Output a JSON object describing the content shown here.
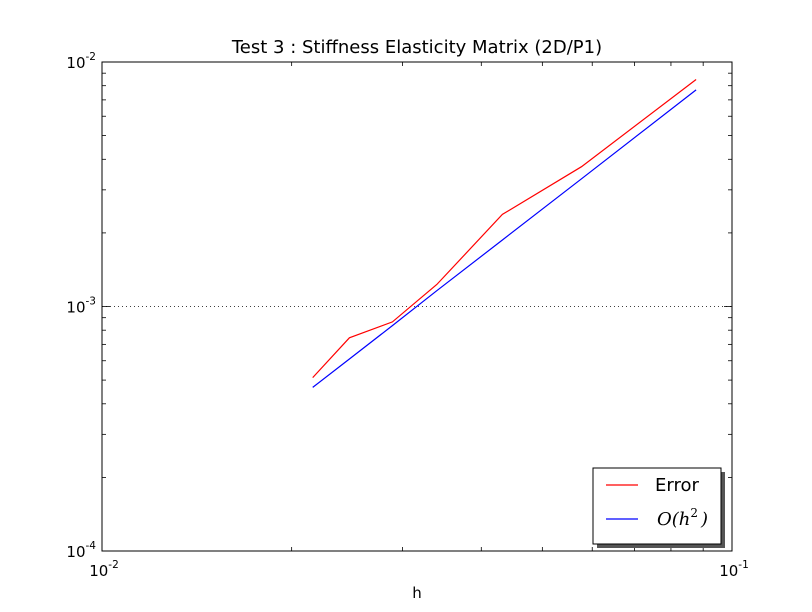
{
  "chart_data": {
    "type": "line",
    "title": "Test 3 : Stiffness Elasticity Matrix (2D/P1)",
    "xlabel": "h",
    "ylabel": "",
    "xscale": "log",
    "yscale": "log",
    "xlim": [
      0.01,
      0.1
    ],
    "ylim": [
      0.0001,
      0.01
    ],
    "xticks": [
      {
        "base": "10",
        "exp": "-2"
      },
      {
        "base": "10",
        "exp": "-1"
      }
    ],
    "yticks": [
      {
        "base": "10",
        "exp": "-4"
      },
      {
        "base": "10",
        "exp": "-3"
      },
      {
        "base": "10",
        "exp": "-2"
      }
    ],
    "grid": "dotted horizontal line at 10^-3",
    "legend_position": "lower-right",
    "series": [
      {
        "name": "Error",
        "color": "#ff0000",
        "x": [
          0.0216,
          0.0247,
          0.0289,
          0.034,
          0.0432,
          0.0577,
          0.0877
        ],
        "y": [
          0.000512,
          0.000745,
          0.000865,
          0.00123,
          0.00238,
          0.00373,
          0.00848
        ]
      },
      {
        "name": "O(h2)",
        "color": "#0000ff",
        "x": [
          0.0216,
          0.0247,
          0.0289,
          0.034,
          0.0432,
          0.0577,
          0.0877
        ],
        "y": [
          0.000467,
          0.00061,
          0.000835,
          0.00116,
          0.00187,
          0.00333,
          0.00769
        ]
      }
    ]
  },
  "legend": {
    "error_label": "Error",
    "model_O": "O(h",
    "model_exp": "2",
    "model_close": ")"
  }
}
